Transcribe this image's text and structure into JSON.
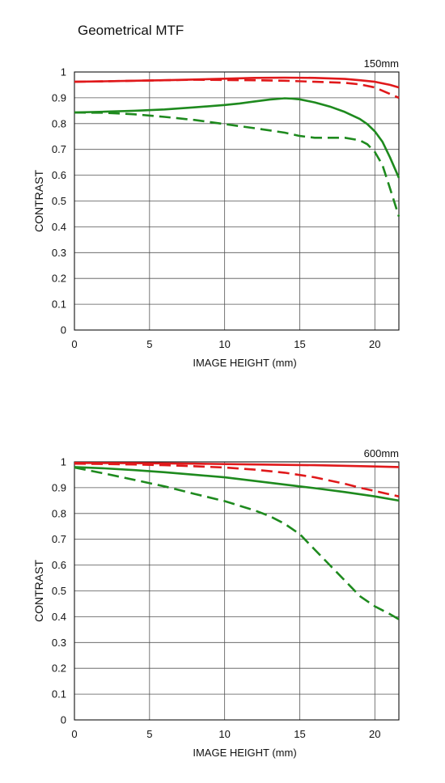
{
  "page": {
    "title": "Geometrical MTF"
  },
  "colors": {
    "sagittal_tele": "#e0191b",
    "meridional": "#1e8a1e",
    "grid": "#555555",
    "axis": "#111111"
  },
  "chart_data": [
    {
      "type": "line",
      "focal_label": "150mm",
      "xlabel": "IMAGE HEIGHT (mm)",
      "ylabel": "CONTRAST",
      "xlim": [
        0,
        21.6
      ],
      "ylim": [
        0,
        1
      ],
      "x_ticks": [
        0,
        5,
        10,
        15,
        20
      ],
      "y_ticks": [
        0,
        0.1,
        0.2,
        0.3,
        0.4,
        0.5,
        0.6,
        0.7,
        0.8,
        0.9,
        1
      ],
      "y_tick_labels": [
        "0",
        "0.1",
        "0.2",
        "0.3",
        "0.4",
        "0.5",
        "0.6",
        "0.7",
        "0.8",
        "0.9",
        "1"
      ],
      "grid": true,
      "series": [
        {
          "color": "#e0191b",
          "dash": false,
          "x": [
            0,
            2,
            4,
            6,
            8,
            10,
            12,
            14,
            16,
            18,
            19,
            20,
            21,
            21.6
          ],
          "y": [
            0.962,
            0.964,
            0.966,
            0.968,
            0.971,
            0.974,
            0.977,
            0.978,
            0.977,
            0.973,
            0.968,
            0.962,
            0.95,
            0.94
          ]
        },
        {
          "color": "#e0191b",
          "dash": true,
          "x": [
            0,
            2,
            4,
            6,
            8,
            10,
            12,
            14,
            16,
            18,
            19,
            20,
            21,
            21.6
          ],
          "y": [
            0.962,
            0.964,
            0.966,
            0.968,
            0.97,
            0.969,
            0.968,
            0.966,
            0.962,
            0.958,
            0.952,
            0.94,
            0.915,
            0.9
          ]
        },
        {
          "color": "#1e8a1e",
          "dash": false,
          "x": [
            0,
            2,
            4,
            6,
            8,
            10,
            11,
            12,
            13,
            14,
            14.5,
            15,
            16,
            17,
            18,
            19,
            19.5,
            20,
            20.5,
            21,
            21.6
          ],
          "y": [
            0.843,
            0.846,
            0.85,
            0.855,
            0.863,
            0.872,
            0.878,
            0.886,
            0.893,
            0.898,
            0.897,
            0.894,
            0.882,
            0.866,
            0.845,
            0.818,
            0.798,
            0.77,
            0.73,
            0.67,
            0.59
          ]
        },
        {
          "color": "#1e8a1e",
          "dash": true,
          "x": [
            0,
            2,
            4,
            6,
            8,
            10,
            12,
            14,
            15,
            16,
            17,
            18,
            19,
            19.5,
            20,
            20.5,
            21,
            21.6
          ],
          "y": [
            0.843,
            0.842,
            0.836,
            0.826,
            0.814,
            0.798,
            0.782,
            0.765,
            0.752,
            0.745,
            0.745,
            0.745,
            0.735,
            0.72,
            0.69,
            0.64,
            0.55,
            0.44
          ]
        }
      ]
    },
    {
      "type": "line",
      "focal_label": "600mm",
      "xlabel": "IMAGE HEIGHT (mm)",
      "ylabel": "CONTRAST",
      "xlim": [
        0,
        21.6
      ],
      "ylim": [
        0,
        1
      ],
      "x_ticks": [
        0,
        5,
        10,
        15,
        20
      ],
      "y_ticks": [
        0,
        0.1,
        0.2,
        0.3,
        0.4,
        0.5,
        0.6,
        0.7,
        0.8,
        0.9,
        1
      ],
      "y_tick_labels": [
        "0",
        "0.1",
        "0.2",
        "0.3",
        "0.4",
        "0.5",
        "0.6",
        "0.7",
        "0.8",
        "0.9",
        "1"
      ],
      "grid": true,
      "series": [
        {
          "color": "#e0191b",
          "dash": false,
          "x": [
            0,
            4,
            8,
            12,
            16,
            20,
            21.6
          ],
          "y": [
            0.996,
            0.995,
            0.993,
            0.99,
            0.987,
            0.982,
            0.98
          ]
        },
        {
          "color": "#e0191b",
          "dash": true,
          "x": [
            0,
            2,
            4,
            6,
            8,
            10,
            12,
            14,
            16,
            18,
            19,
            20,
            21,
            21.6
          ],
          "y": [
            0.993,
            0.992,
            0.99,
            0.987,
            0.983,
            0.978,
            0.97,
            0.958,
            0.94,
            0.915,
            0.9,
            0.887,
            0.874,
            0.866
          ]
        },
        {
          "color": "#1e8a1e",
          "dash": false,
          "x": [
            0,
            2,
            4,
            6,
            8,
            10,
            12,
            14,
            16,
            18,
            20,
            21.6
          ],
          "y": [
            0.98,
            0.975,
            0.968,
            0.96,
            0.95,
            0.94,
            0.926,
            0.912,
            0.898,
            0.883,
            0.866,
            0.85
          ]
        },
        {
          "color": "#1e8a1e",
          "dash": true,
          "x": [
            0,
            2,
            4,
            6,
            8,
            10,
            12,
            13,
            14,
            15,
            16,
            17,
            18,
            19,
            20,
            21,
            21.6
          ],
          "y": [
            0.978,
            0.955,
            0.93,
            0.905,
            0.876,
            0.848,
            0.812,
            0.79,
            0.76,
            0.72,
            0.66,
            0.6,
            0.54,
            0.48,
            0.44,
            0.41,
            0.39
          ]
        }
      ]
    }
  ]
}
